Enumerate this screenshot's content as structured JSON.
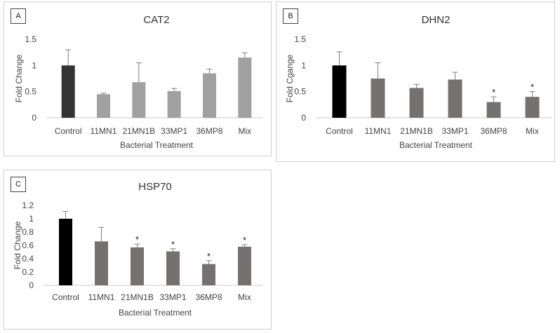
{
  "chart_data": [
    {
      "type": "bar",
      "panel_label": "A",
      "title": "CAT2",
      "categories": [
        "Control",
        "11MN1",
        "21MN1B",
        "33MP1",
        "36MP8",
        "Mix"
      ],
      "values": [
        1.0,
        0.45,
        0.68,
        0.51,
        0.85,
        1.15
      ],
      "errors": [
        0.3,
        0.02,
        0.37,
        0.05,
        0.08,
        0.09
      ],
      "significance": [
        "",
        "",
        "",
        "",
        "",
        ""
      ],
      "colors": [
        "#333333",
        "#a0a0a0",
        "#a0a0a0",
        "#a0a0a0",
        "#a0a0a0",
        "#a0a0a0"
      ],
      "xlabel": "Bacterial Treatment",
      "ylabel": "Fold Change",
      "ylim": [
        0,
        1.5
      ],
      "yticks": [
        "0",
        "0.5",
        "1",
        "1.5"
      ],
      "ytick_values": [
        0,
        0.5,
        1,
        1.5
      ]
    },
    {
      "type": "bar",
      "panel_label": "B",
      "title": "DHN2",
      "categories": [
        "Control",
        "11MN1",
        "21MN1B",
        "33MP1",
        "36MP8",
        "Mix"
      ],
      "values": [
        1.0,
        0.75,
        0.57,
        0.73,
        0.3,
        0.4
      ],
      "errors": [
        0.26,
        0.3,
        0.07,
        0.14,
        0.1,
        0.1
      ],
      "significance": [
        "",
        "",
        "",
        "",
        "*",
        "*"
      ],
      "colors": [
        "#000000",
        "#767171",
        "#767171",
        "#767171",
        "#767171",
        "#767171"
      ],
      "xlabel": "Bacterial Treatment",
      "ylabel": "Fold Cgange",
      "ylim": [
        0,
        1.5
      ],
      "yticks": [
        "0",
        "0.5",
        "1",
        "1.5"
      ],
      "ytick_values": [
        0,
        0.5,
        1,
        1.5
      ]
    },
    {
      "type": "bar",
      "panel_label": "C",
      "title": "HSP70",
      "categories": [
        "Control",
        "11MN1",
        "21MN1B",
        "33MP1",
        "36MP8",
        "Mix"
      ],
      "values": [
        1.0,
        0.66,
        0.57,
        0.51,
        0.32,
        0.58
      ],
      "errors": [
        0.11,
        0.21,
        0.05,
        0.04,
        0.05,
        0.03
      ],
      "significance": [
        "",
        "",
        "*",
        "*",
        "*",
        "*"
      ],
      "colors": [
        "#000000",
        "#767171",
        "#767171",
        "#767171",
        "#767171",
        "#767171"
      ],
      "xlabel": "Bacterial Treatment",
      "ylabel": "Fold Change",
      "ylim": [
        0,
        1.2
      ],
      "yticks": [
        "0",
        "0.2",
        "0.4",
        "0.6",
        "0.8",
        "1",
        "1.2"
      ],
      "ytick_values": [
        0,
        0.2,
        0.4,
        0.6,
        0.8,
        1,
        1.2
      ]
    }
  ]
}
